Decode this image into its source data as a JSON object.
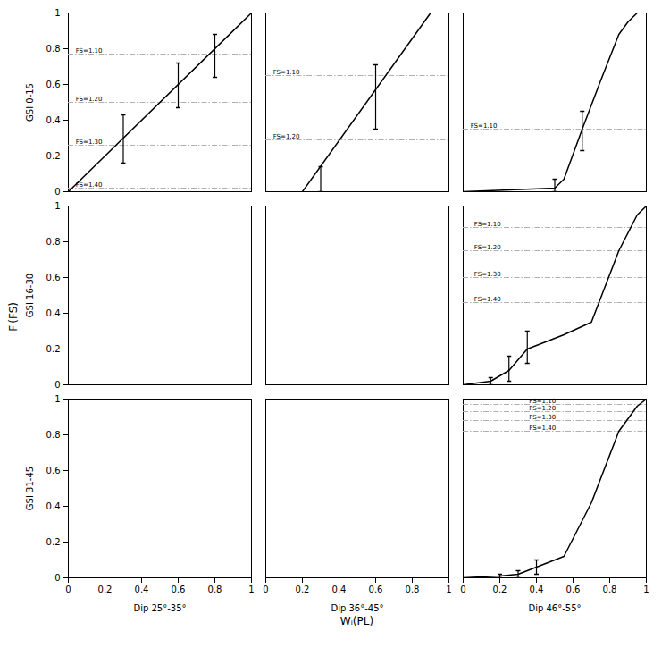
{
  "chart_data": {
    "type": "line",
    "xlabel": "Wᵢ(PL)",
    "ylabel": "Fᵢ(FS)",
    "rows": [
      "GSI 0-15",
      "GSI 16-30",
      "GSI 31-45"
    ],
    "columns": [
      "Dip 25°-35°",
      "Dip 36°-45°",
      "Dip 46°-55°"
    ],
    "xlim": [
      0,
      1
    ],
    "ylim": [
      0,
      1
    ],
    "xticks": [
      0,
      0.2,
      0.4,
      0.6,
      0.8,
      1
    ],
    "yticks": [
      0,
      0.2,
      0.4,
      0.6,
      0.8,
      1
    ],
    "grid": false,
    "color": "black",
    "panels": [
      {
        "row": "GSI 0-15",
        "column": "Dip 25°-35°",
        "x": [
          0.0,
          1.0
        ],
        "values": [
          0.0,
          1.0
        ],
        "error_bars": {
          "x": [
            0.3,
            0.6,
            0.8
          ],
          "y": [
            0.3,
            0.6,
            0.76
          ],
          "lower": [
            0.14,
            0.13,
            0.12
          ],
          "upper": [
            0.13,
            0.12,
            0.12
          ]
        },
        "fs_lines": {
          "values": [
            0.77,
            0.5,
            0.26,
            0.02
          ],
          "labels": [
            "FS=1.10",
            "FS=1.20",
            "FS=1.30",
            "FS=1.40"
          ],
          "label_x": [
            0.04,
            0.04,
            0.04,
            0.04
          ],
          "color": "#b0b0b0",
          "line_style": "dashdot"
        }
      },
      {
        "row": "GSI 0-15",
        "column": "Dip 36°-45°",
        "x": [
          0.2,
          0.9
        ],
        "values": [
          0.0,
          1.0
        ],
        "error_bars": {
          "x": [
            0.3,
            0.6
          ],
          "y": [
            0.14,
            0.57
          ],
          "lower": [
            0.14,
            0.22
          ],
          "upper": [
            0.0,
            0.14
          ]
        },
        "fs_lines": {
          "values": [
            0.65,
            0.29
          ],
          "labels": [
            "FS=1.10",
            "FS=1.20"
          ],
          "label_x": [
            0.04,
            0.04
          ],
          "color": "#b0b0b0",
          "line_style": "dashdot"
        }
      },
      {
        "row": "GSI 0-15",
        "column": "Dip 46°-55°",
        "x": [
          0.0,
          0.5,
          0.55,
          0.65,
          0.75,
          0.85,
          0.9,
          0.95
        ],
        "values": [
          0.0,
          0.02,
          0.07,
          0.35,
          0.62,
          0.88,
          0.95,
          1.0
        ],
        "error_bars": {
          "x": [
            0.5,
            0.65
          ],
          "y": [
            0.02,
            0.35
          ],
          "lower": [
            0.02,
            0.12
          ],
          "upper": [
            0.05,
            0.1
          ]
        },
        "fs_lines": {
          "values": [
            0.35
          ],
          "labels": [
            "FS=1.10"
          ],
          "label_x": [
            0.04
          ],
          "color": "#b0b0b0",
          "line_style": "dashdot"
        }
      },
      {
        "row": "GSI 16-30",
        "column": "Dip 46°-55°",
        "x": [
          0.0,
          0.15,
          0.25,
          0.35,
          0.55,
          0.7,
          0.85,
          0.95,
          1.0
        ],
        "values": [
          0.0,
          0.02,
          0.08,
          0.2,
          0.28,
          0.35,
          0.75,
          0.95,
          1.0
        ],
        "error_bars": {
          "x": [
            0.15,
            0.25,
            0.35
          ],
          "y": [
            0.02,
            0.08,
            0.2
          ],
          "lower": [
            0.02,
            0.06,
            0.08
          ],
          "upper": [
            0.02,
            0.08,
            0.1
          ]
        },
        "fs_lines": {
          "values": [
            0.88,
            0.75,
            0.6,
            0.46
          ],
          "labels": [
            "FS=1.10",
            "FS=1.20",
            "FS=1.30",
            "FS=1.40"
          ],
          "label_x": [
            0.06,
            0.06,
            0.06,
            0.06
          ],
          "color": "#b0b0b0",
          "line_style": "dashdot"
        }
      },
      {
        "row": "GSI 31-45",
        "column": "Dip 46°-55°",
        "x": [
          0.0,
          0.2,
          0.3,
          0.4,
          0.55,
          0.7,
          0.85,
          0.95,
          1.0
        ],
        "values": [
          0.0,
          0.01,
          0.02,
          0.06,
          0.12,
          0.42,
          0.82,
          0.96,
          1.0
        ],
        "error_bars": {
          "x": [
            0.2,
            0.3,
            0.4
          ],
          "y": [
            0.01,
            0.02,
            0.06
          ],
          "lower": [
            0.01,
            0.02,
            0.04
          ],
          "upper": [
            0.01,
            0.02,
            0.04
          ]
        },
        "fs_lines": {
          "values": [
            0.97,
            0.93,
            0.88,
            0.82
          ],
          "labels": [
            "FS=1.10",
            "FS=1.20",
            "FS=1.30",
            "FS=1.40"
          ],
          "label_x": [
            0.36,
            0.36,
            0.36,
            0.36
          ],
          "color": "#b0b0b0",
          "line_style": "dashdot"
        }
      }
    ]
  }
}
